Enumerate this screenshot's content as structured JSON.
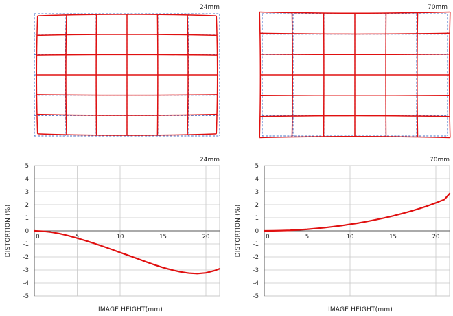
{
  "chart_data": [
    {
      "type": "grid",
      "title": "24mm",
      "columns": 6,
      "rows": 6,
      "distortion": "barrel",
      "series": [
        {
          "name": "",
          "style": "dashed"
        },
        {
          "name": "",
          "style": "solid"
        }
      ]
    },
    {
      "type": "grid",
      "title": "70mm",
      "columns": 6,
      "rows": 6,
      "distortion": "pincushion",
      "series": [
        {
          "name": "",
          "style": "dashed"
        },
        {
          "name": "",
          "style": "solid"
        }
      ]
    },
    {
      "type": "line",
      "title": "24mm",
      "xlabel": "IMAGE HEIGHT(mm)",
      "ylabel": "DISTORTION (%)",
      "xlim": [
        0,
        21.6
      ],
      "ylim": [
        -5,
        5
      ],
      "xticks": [
        0,
        5,
        10,
        15,
        20
      ],
      "yticks": [
        5,
        4,
        3,
        2,
        1,
        0,
        -1,
        -2,
        -3,
        -4,
        -5
      ],
      "grid": true,
      "x": [
        0,
        1,
        2,
        3,
        4,
        5,
        6,
        7,
        8,
        9,
        10,
        11,
        12,
        13,
        14,
        15,
        16,
        17,
        18,
        19,
        20,
        21,
        21.6
      ],
      "series": [
        {
          "name": "",
          "values": [
            0,
            -0.03,
            -0.1,
            -0.22,
            -0.38,
            -0.56,
            -0.76,
            -0.97,
            -1.19,
            -1.42,
            -1.66,
            -1.89,
            -2.13,
            -2.37,
            -2.6,
            -2.81,
            -2.99,
            -3.14,
            -3.24,
            -3.28,
            -3.22,
            -3.05,
            -2.9
          ]
        }
      ],
      "colors": {
        "line": "#e01010"
      }
    },
    {
      "type": "line",
      "title": "70mm",
      "xlabel": "IMAGE HEIGHT(mm)",
      "ylabel": "DISTORTION (%)",
      "xlim": [
        0,
        21.6
      ],
      "ylim": [
        -5,
        5
      ],
      "xticks": [
        0,
        5,
        10,
        15,
        20
      ],
      "yticks": [
        5,
        4,
        3,
        2,
        1,
        0,
        -1,
        -2,
        -3,
        -4,
        -5
      ],
      "grid": true,
      "x": [
        0,
        1,
        2,
        3,
        4,
        5,
        6,
        7,
        8,
        9,
        10,
        11,
        12,
        13,
        14,
        15,
        16,
        17,
        18,
        19,
        20,
        21,
        21.6
      ],
      "series": [
        {
          "name": "",
          "values": [
            0,
            0.005,
            0.02,
            0.04,
            0.08,
            0.12,
            0.18,
            0.24,
            0.32,
            0.4,
            0.5,
            0.6,
            0.72,
            0.85,
            0.99,
            1.14,
            1.31,
            1.49,
            1.69,
            1.9,
            2.14,
            2.4,
            2.85
          ]
        }
      ],
      "colors": {
        "line": "#e01010"
      }
    }
  ],
  "colors": {
    "grid_actual": "#e01010",
    "grid_ideal": "#4a74c9",
    "plot_grid": "#c8c8c8",
    "axis": "#555555"
  }
}
